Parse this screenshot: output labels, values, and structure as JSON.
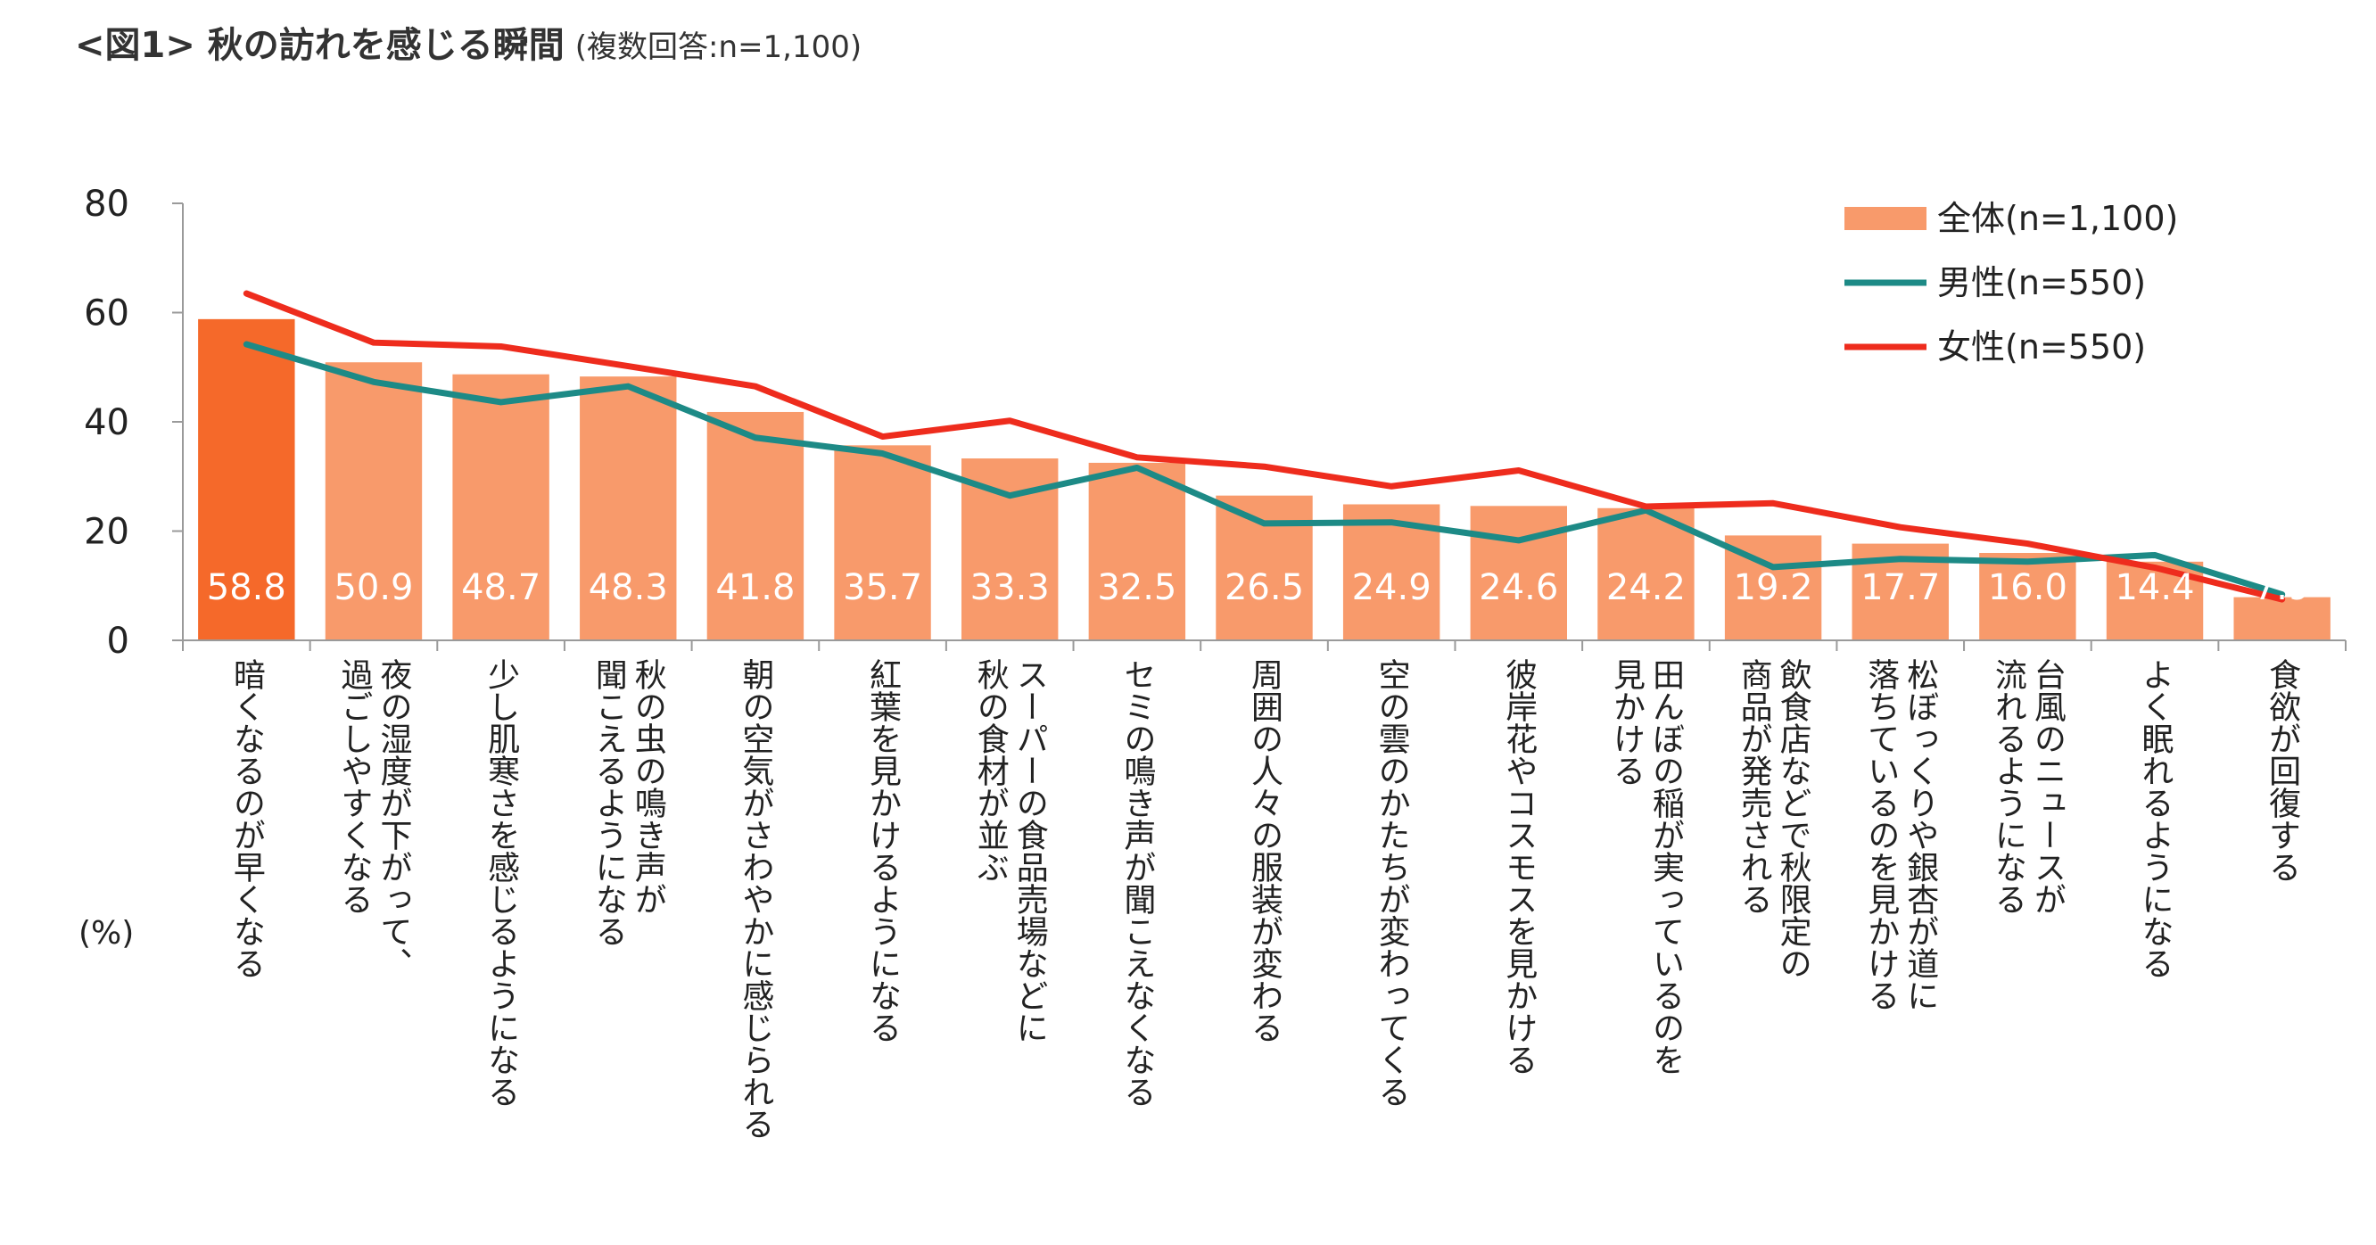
{
  "header": {
    "title": "<図1> 秋の訪れを感じる瞬間",
    "subtitle": "(複数回答:n=1,100)"
  },
  "chart_data": {
    "type": "bar",
    "title": "<図1> 秋の訪れを感じる瞬間",
    "unit_label": "(%)",
    "ylim": [
      0,
      80
    ],
    "yticks": [
      0,
      20,
      40,
      60,
      80
    ],
    "grid": false,
    "legend_position": "top-right",
    "highlight_color": "#f5692a",
    "categories": [
      [
        "暗くなるのが早くなる"
      ],
      [
        "夜の湿度が下がって、",
        "過ごしやすくなる"
      ],
      [
        "少し肌寒さを感じるようになる"
      ],
      [
        "秋の虫の鳴き声が",
        "聞こえるようになる"
      ],
      [
        "朝の空気がさわやかに感じられる"
      ],
      [
        "紅葉を見かけるようになる"
      ],
      [
        "スーパーの食品売場などに",
        "秋の食材が並ぶ"
      ],
      [
        "セミの鳴き声が聞こえなくなる"
      ],
      [
        "周囲の人々の服装が変わる"
      ],
      [
        "空の雲のかたちが変わってくる"
      ],
      [
        "彼岸花やコスモスを見かける"
      ],
      [
        "田んぼの稲が実っているのを",
        "見かける"
      ],
      [
        "飲食店などで秋限定の",
        "商品が発売される"
      ],
      [
        "松ぼっくりや銀杏が道に",
        "落ちているのを見かける"
      ],
      [
        "台風のニュースが",
        "流れるようになる"
      ],
      [
        "よく眠れるようになる"
      ],
      [
        "食欲が回復する"
      ]
    ],
    "series": [
      {
        "name": "全体(n=1,100)",
        "kind": "bar",
        "color": "#f89a6b",
        "values": [
          58.8,
          50.9,
          48.7,
          48.3,
          41.8,
          35.7,
          33.3,
          32.5,
          26.5,
          24.9,
          24.6,
          24.2,
          19.2,
          17.7,
          16.0,
          14.4,
          7.9
        ],
        "labels": [
          "58.8",
          "50.9",
          "48.7",
          "48.3",
          "41.8",
          "35.7",
          "33.3",
          "32.5",
          "26.5",
          "24.9",
          "24.6",
          "24.2",
          "19.2",
          "17.7",
          "16.0",
          "14.4",
          "7.9"
        ]
      },
      {
        "name": "男性(n=550)",
        "kind": "line",
        "color": "#1d8a86",
        "values": [
          54.2,
          47.3,
          43.6,
          46.5,
          37.1,
          34.2,
          26.5,
          31.6,
          21.4,
          21.6,
          18.3,
          23.8,
          13.4,
          14.9,
          14.4,
          15.6,
          8.4
        ]
      },
      {
        "name": "女性(n=550)",
        "kind": "line",
        "color": "#ee2c1d",
        "values": [
          63.5,
          54.5,
          53.8,
          50.2,
          46.5,
          37.3,
          40.2,
          33.5,
          31.8,
          28.2,
          31.1,
          24.5,
          25.1,
          20.7,
          17.7,
          13.3,
          7.5
        ]
      }
    ]
  }
}
